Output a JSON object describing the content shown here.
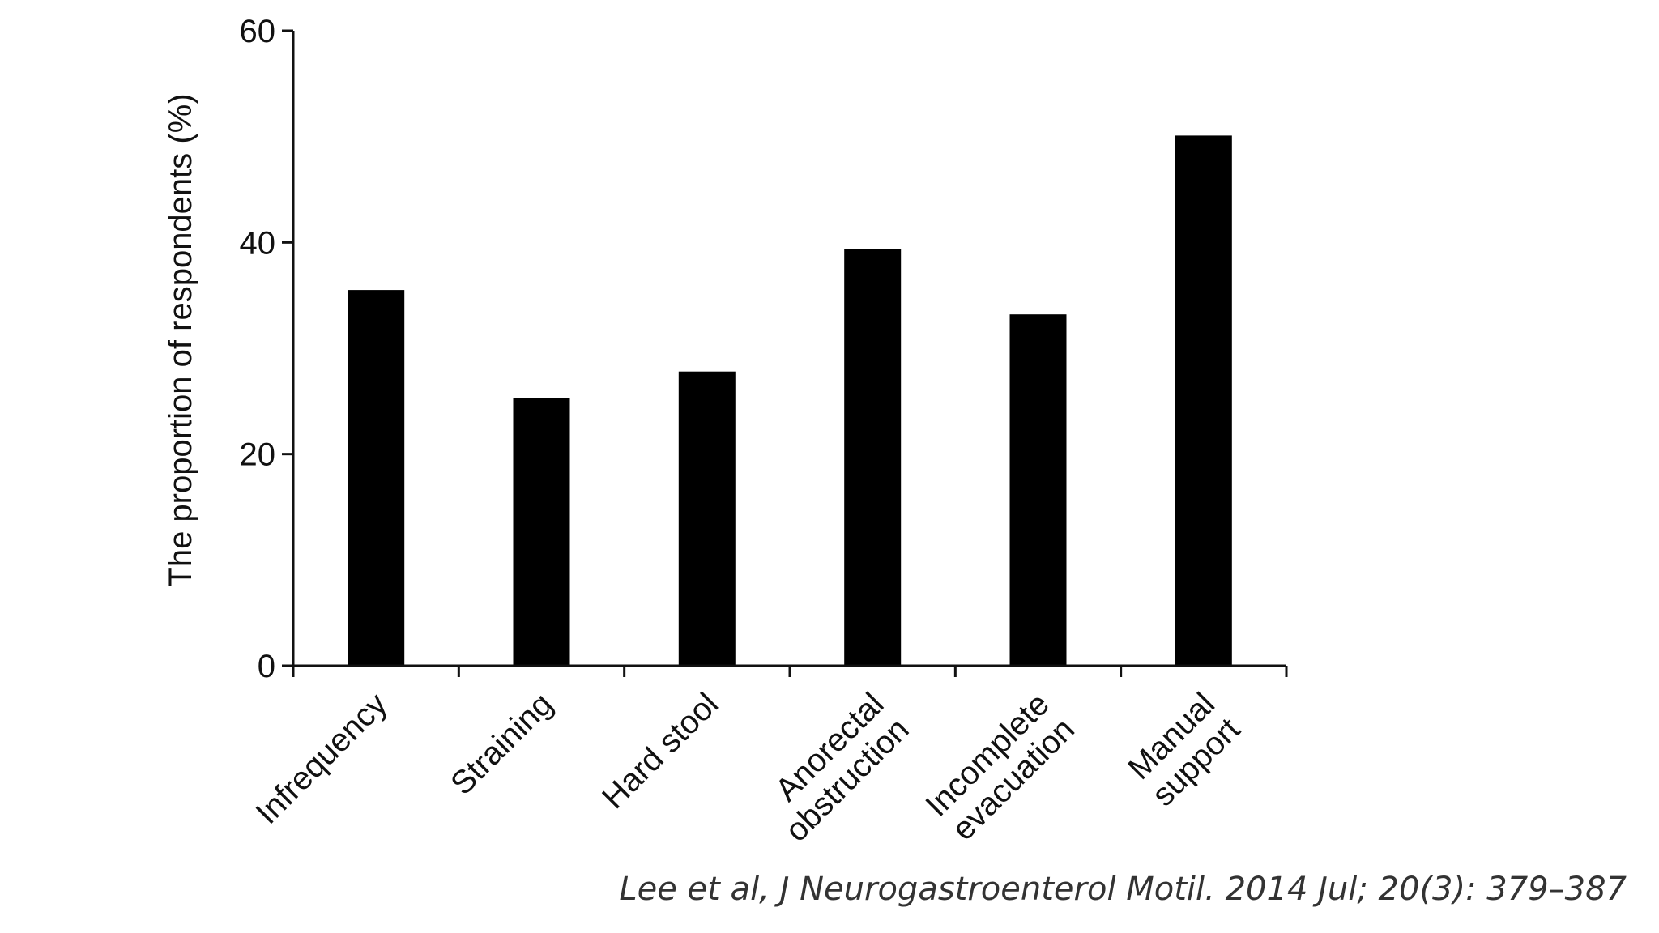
{
  "chart_data": {
    "type": "bar",
    "categories": [
      [
        "Infrequency"
      ],
      [
        "Straining"
      ],
      [
        "Hard stool"
      ],
      [
        "Anorectal",
        "obstruction"
      ],
      [
        "Incomplete",
        "evacuation"
      ],
      [
        "Manual",
        "support"
      ]
    ],
    "values": [
      35.5,
      25.3,
      27.8,
      39.4,
      33.2,
      50.1
    ],
    "ylabel": "The proportion of respondents (%)",
    "ylim": [
      0,
      60
    ],
    "yticks": [
      "0",
      "20",
      "40",
      "60"
    ],
    "bar_color": "#000000",
    "grid": false,
    "legend": "none"
  },
  "citation": "Lee et al, J Neurogastroenterol Motil. 2014 Jul; 20(3): 379–387"
}
